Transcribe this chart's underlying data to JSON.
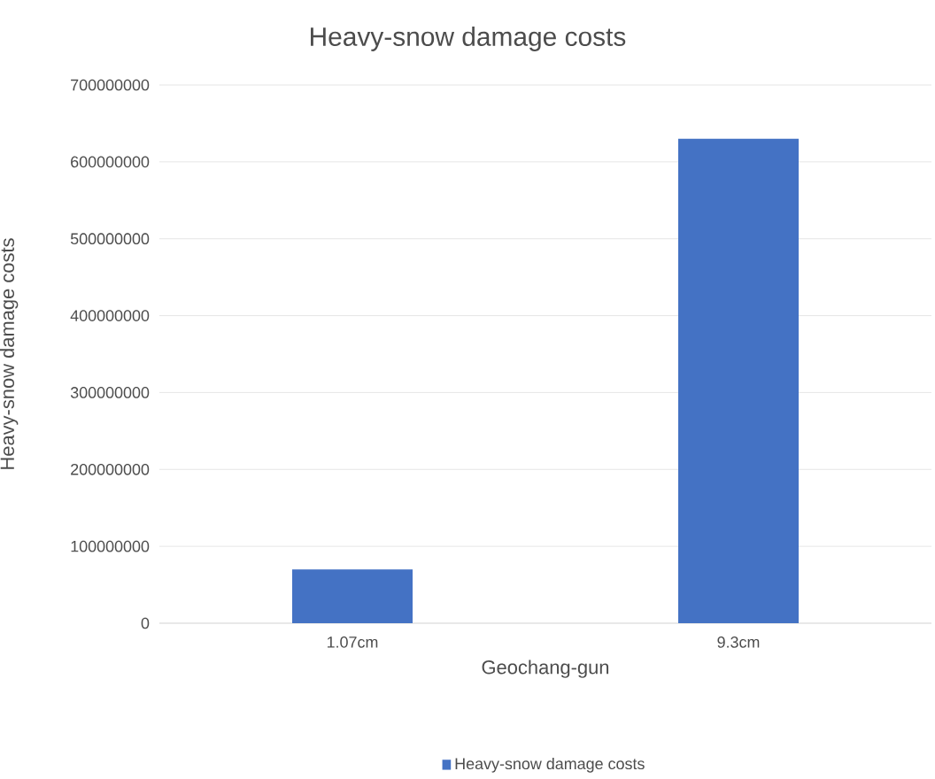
{
  "chart_data": {
    "type": "bar",
    "title": "Heavy-snow damage costs",
    "xlabel": "Geochang-gun",
    "ylabel": "Heavy-snow damage costs",
    "categories": [
      "1.07cm",
      "9.3cm"
    ],
    "series": [
      {
        "name": "Heavy-snow damage costs",
        "color": "#4472c4",
        "values": [
          70000000,
          630000000
        ]
      }
    ],
    "ylim": [
      0,
      700000000
    ],
    "yticks": [
      0,
      100000000,
      200000000,
      300000000,
      400000000,
      500000000,
      600000000,
      700000000
    ],
    "grid": "y",
    "legend": "bottom"
  }
}
